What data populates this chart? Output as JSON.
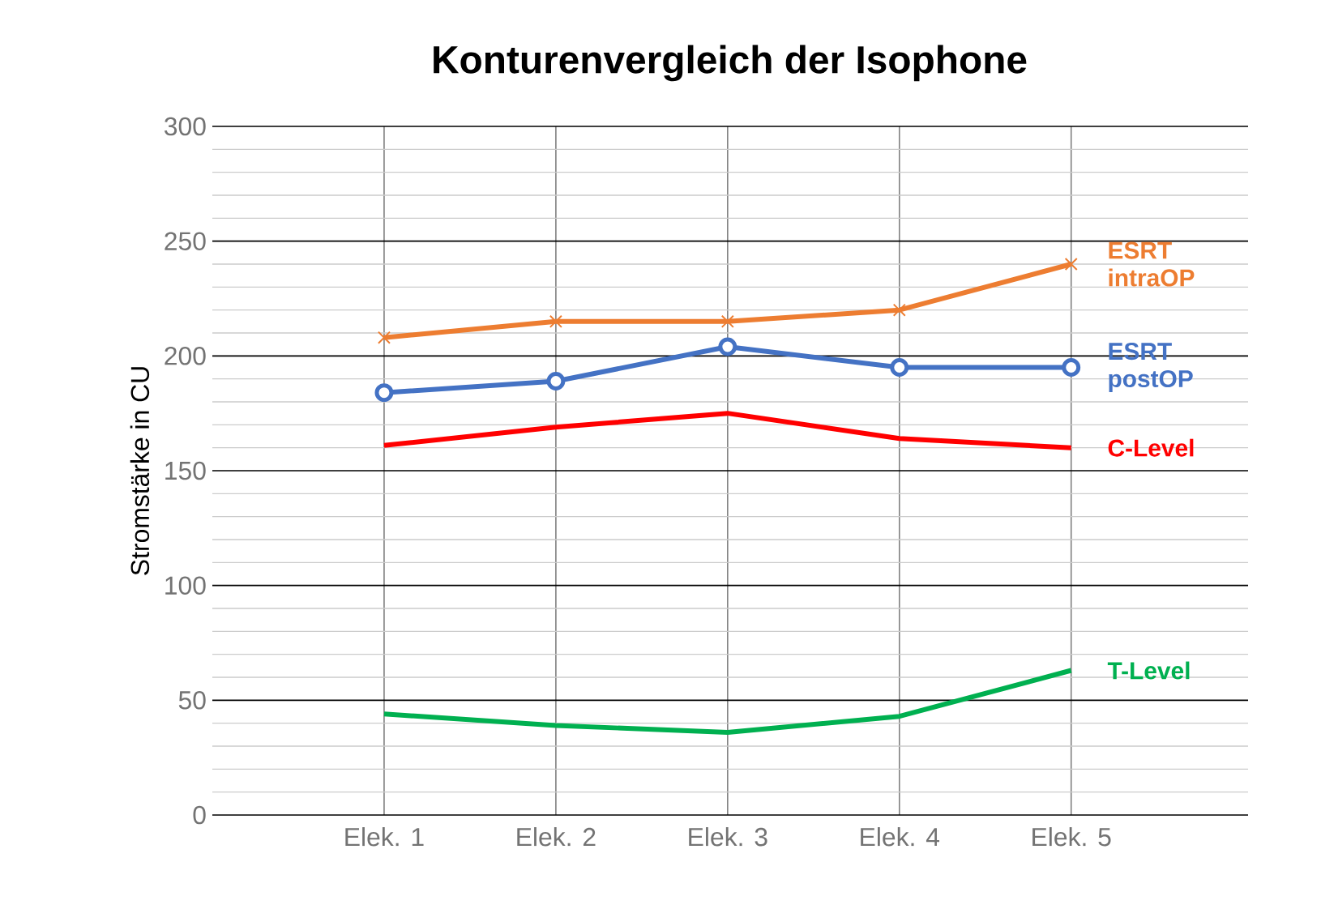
{
  "chart_data": {
    "type": "line",
    "title": "Konturenvergleich der Isophone",
    "ylabel": "Stromstärke in CU",
    "categories": [
      "Elek. 1",
      "Elek. 2",
      "Elek. 3",
      "Elek. 4",
      "Elek. 5"
    ],
    "ylim": [
      0,
      300
    ],
    "yticks": [
      0,
      50,
      100,
      150,
      200,
      250,
      300
    ],
    "grid": true,
    "legend": false,
    "series": [
      {
        "name": "ESRT intraOP",
        "color": "#ed7d31",
        "marker": "cross",
        "values": [
          208,
          215,
          215,
          220,
          240
        ]
      },
      {
        "name": "ESRT postOP",
        "color": "#4472c4",
        "marker": "circle",
        "values": [
          184,
          189,
          204,
          195,
          195
        ]
      },
      {
        "name": "C-Level",
        "color": "#ff0000",
        "marker": "none",
        "values": [
          161,
          169,
          175,
          164,
          160
        ]
      },
      {
        "name": "T-Level",
        "color": "#00b050",
        "marker": "none",
        "values": [
          44,
          39,
          36,
          43,
          63
        ]
      }
    ]
  }
}
